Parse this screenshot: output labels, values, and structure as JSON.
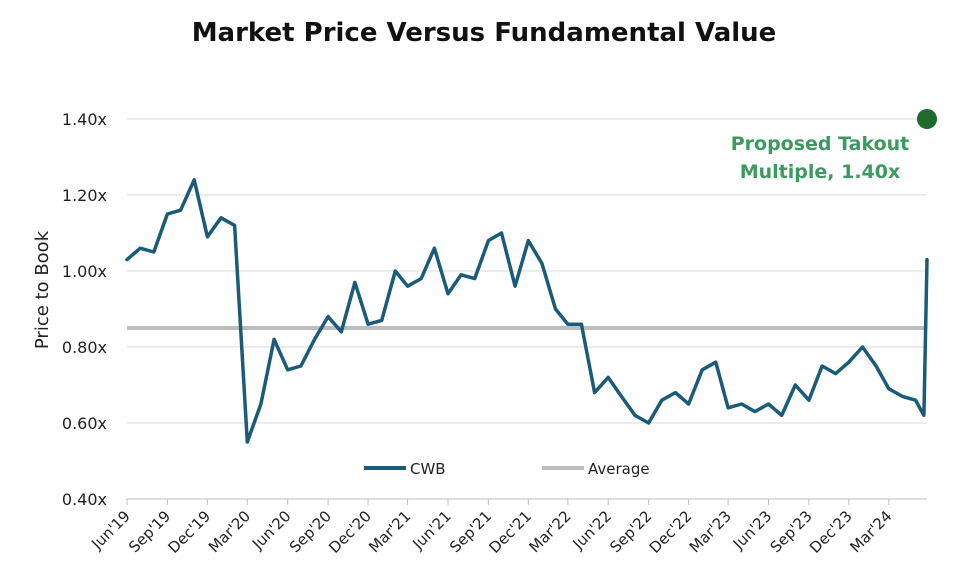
{
  "chart_data": {
    "type": "line",
    "title": "Market Price Versus Fundamental Value",
    "ylabel": "Price to Book",
    "xlabel": "",
    "ylim": [
      0.4,
      1.4
    ],
    "y_ticks": [
      "0.40x",
      "0.60x",
      "0.80x",
      "1.00x",
      "1.20x",
      "1.40x"
    ],
    "y_tick_values": [
      0.4,
      0.6,
      0.8,
      1.0,
      1.2,
      1.4
    ],
    "x_ticks": [
      "Jun'19",
      "Sep'19",
      "Dec'19",
      "Mar'20",
      "Jun'20",
      "Sep'20",
      "Dec'20",
      "Mar'21",
      "Jun'21",
      "Sep'21",
      "Dec'21",
      "Mar'22",
      "Jun'22",
      "Sep'22",
      "Dec'22",
      "Mar'23",
      "Jun'23",
      "Sep'23",
      "Dec'23",
      "Mar'24"
    ],
    "grid": "horizontal",
    "legend": {
      "position": "bottom-center",
      "entries": [
        "CWB",
        "Average"
      ]
    },
    "colors": {
      "CWB": "#1b5b7a",
      "Average": "#bdbdbd",
      "takeout": "#1e6b2b",
      "annotation": "#3c9a5f"
    },
    "series": [
      {
        "name": "CWB",
        "x": [
          "2019-06",
          "2019-07",
          "2019-08",
          "2019-09",
          "2019-10",
          "2019-11",
          "2019-12",
          "2020-01",
          "2020-02",
          "2020-03",
          "2020-04",
          "2020-05",
          "2020-06",
          "2020-07",
          "2020-08",
          "2020-09",
          "2020-10",
          "2020-11",
          "2020-12",
          "2021-01",
          "2021-02",
          "2021-03",
          "2021-04",
          "2021-05",
          "2021-06",
          "2021-07",
          "2021-08",
          "2021-09",
          "2021-10",
          "2021-11",
          "2021-12",
          "2022-01",
          "2022-02",
          "2022-03",
          "2022-04",
          "2022-05",
          "2022-06",
          "2022-07",
          "2022-08",
          "2022-09",
          "2022-10",
          "2022-11",
          "2022-12",
          "2023-01",
          "2023-02",
          "2023-03",
          "2023-04",
          "2023-05",
          "2023-06",
          "2023-07",
          "2023-08",
          "2023-09",
          "2023-10",
          "2023-11",
          "2023-12",
          "2024-01",
          "2024-02",
          "2024-03",
          "2024-04",
          "2024-05",
          "2024-05-20",
          "2024-05-27"
        ],
        "values": [
          1.03,
          1.06,
          1.05,
          1.15,
          1.16,
          1.24,
          1.09,
          1.14,
          1.12,
          0.55,
          0.65,
          0.82,
          0.74,
          0.75,
          0.82,
          0.88,
          0.84,
          0.97,
          0.86,
          0.87,
          1.0,
          0.96,
          0.98,
          1.06,
          0.94,
          0.99,
          0.98,
          1.08,
          1.1,
          0.96,
          1.08,
          1.02,
          0.9,
          0.86,
          0.86,
          0.68,
          0.72,
          0.67,
          0.62,
          0.6,
          0.66,
          0.68,
          0.65,
          0.74,
          0.76,
          0.64,
          0.65,
          0.63,
          0.65,
          0.62,
          0.7,
          0.66,
          0.75,
          0.73,
          0.76,
          0.8,
          0.75,
          0.69,
          0.67,
          0.66,
          0.62,
          1.03
        ]
      },
      {
        "name": "Average",
        "value": 0.85
      }
    ],
    "annotations": [
      {
        "x": "2024-05-27",
        "y": 1.4,
        "line1": "Proposed Takout",
        "line2": "Multiple, 1.40x"
      }
    ]
  }
}
